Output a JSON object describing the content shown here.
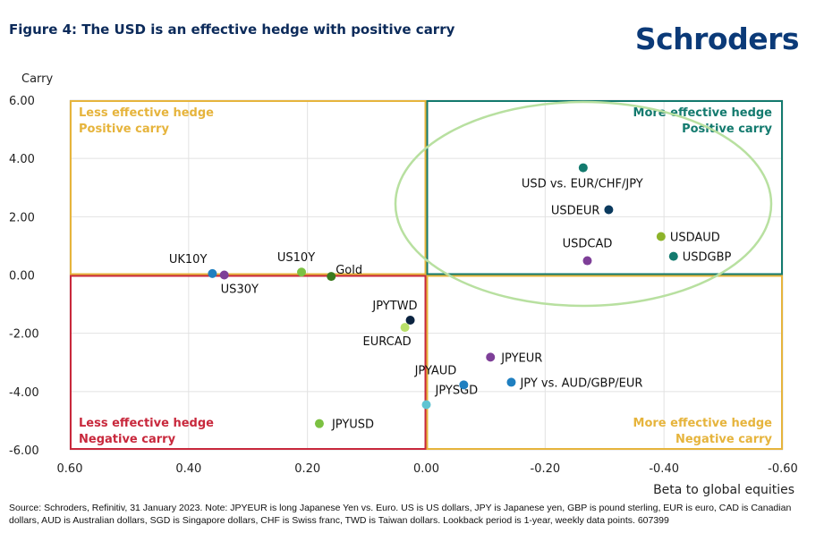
{
  "title": "Figure 4: The USD is an effective hedge with positive carry",
  "logo": "Schroders",
  "source": "Source: Schroders, Refinitiv, 31 January 2023. Note: JPYEUR is long Japanese Yen vs. Euro. US is US dollars, JPY is Japanese yen, GBP is pound sterling, EUR is euro, CAD is Canadian dollars, AUD is Australian dollars, SGD is Singapore dollars, CHF is Swiss franc, TWD is Taiwan dollars. Lookback period is 1-year, weekly data points. 607399",
  "chart_data": {
    "type": "scatter",
    "xlabel": "Beta to global equities",
    "ylabel": "Carry",
    "xlim": [
      0.6,
      -0.6
    ],
    "ylim": [
      -6,
      6
    ],
    "x_reversed": true,
    "grid": true,
    "xticks": [
      "0.60",
      "0.40",
      "0.20",
      "0.00",
      "-0.20",
      "-0.40",
      "-0.60"
    ],
    "xtick_values": [
      0.6,
      0.4,
      0.2,
      0,
      -0.2,
      -0.4,
      -0.6
    ],
    "yticks": [
      "6.00",
      "4.00",
      "2.00",
      "0.00",
      "-2.00",
      "-4.00",
      "-6.00"
    ],
    "ytick_values": [
      6,
      4,
      2,
      0,
      -2,
      -4,
      -6
    ],
    "quadrants": [
      {
        "line1": "Less effective hedge",
        "line2": "Positive carry",
        "color": "#e6b43c"
      },
      {
        "line1": "More effective hedge",
        "line2": "Positive carry",
        "color": "#137a6e"
      },
      {
        "line1": "Less effective hedge",
        "line2": "Negative carry",
        "color": "#c8283c"
      },
      {
        "line1": "More effective hedge",
        "line2": "Negative carry",
        "color": "#e6b43c"
      }
    ],
    "highlight_color": "#b8e0a0",
    "points": [
      {
        "label": "UK10Y",
        "x": 0.36,
        "y": 0.05,
        "color": "#1f7fc0"
      },
      {
        "label": "US30Y",
        "x": 0.34,
        "y": 0.0,
        "color": "#7e3f98"
      },
      {
        "label": "US10Y",
        "x": 0.21,
        "y": 0.1,
        "color": "#7cc142"
      },
      {
        "label": "Gold",
        "x": 0.16,
        "y": -0.05,
        "color": "#3b7a1e"
      },
      {
        "label": "JPYTWD",
        "x": 0.027,
        "y": -1.55,
        "color": "#0b2340"
      },
      {
        "label": "EURCAD",
        "x": 0.036,
        "y": -1.8,
        "color": "#b9e06a"
      },
      {
        "label": "JPYUSD",
        "x": 0.18,
        "y": -5.1,
        "color": "#7cc142"
      },
      {
        "label": "JPYSGD",
        "x": 0.0,
        "y": -4.45,
        "color": "#5fc4d2"
      },
      {
        "label": "JPYAUD",
        "x": -0.063,
        "y": -3.77,
        "color": "#1f7fc0"
      },
      {
        "label": "JPY vs. AUD/GBP/EUR",
        "x": -0.143,
        "y": -3.68,
        "color": "#1f7fc0"
      },
      {
        "label": "JPYEUR",
        "x": -0.108,
        "y": -2.82,
        "color": "#7e3f98"
      },
      {
        "label": "USD vs. EUR/CHF/JPY",
        "x": -0.264,
        "y": 3.68,
        "color": "#137a6e"
      },
      {
        "label": "USDEUR",
        "x": -0.307,
        "y": 2.24,
        "color": "#0b3a5e"
      },
      {
        "label": "USDCAD",
        "x": -0.271,
        "y": 0.49,
        "color": "#7e3f98"
      },
      {
        "label": "USDAUD",
        "x": -0.395,
        "y": 1.32,
        "color": "#8db32a"
      },
      {
        "label": "USDGBP",
        "x": -0.416,
        "y": 0.64,
        "color": "#137a6e"
      }
    ]
  }
}
